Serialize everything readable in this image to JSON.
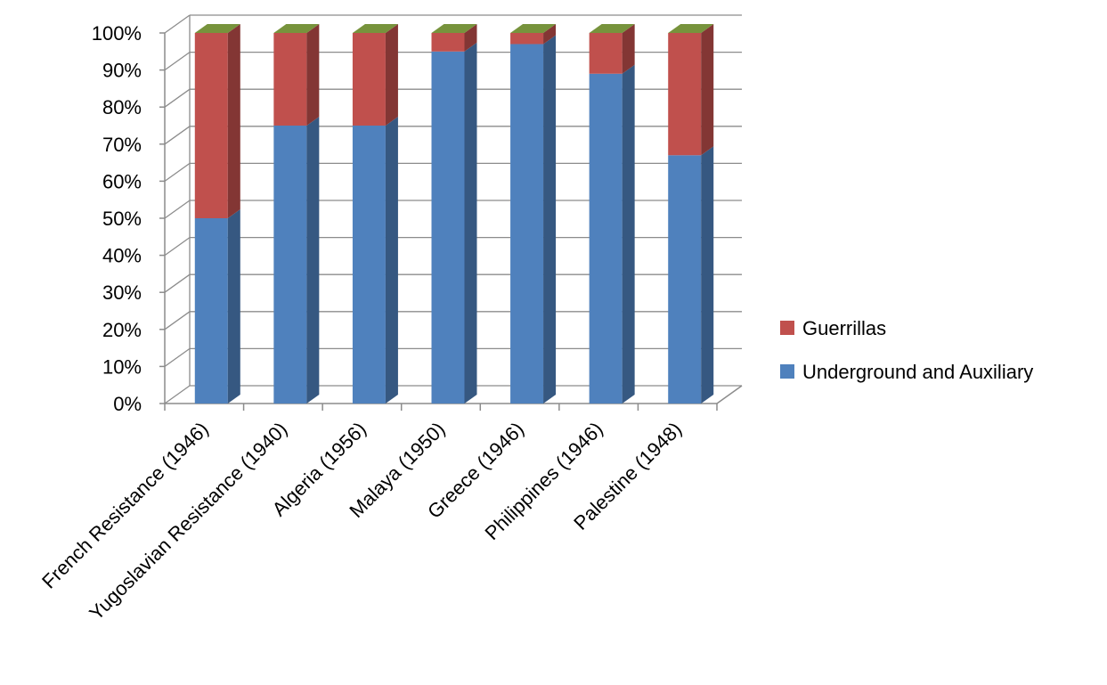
{
  "chart_data": {
    "type": "bar",
    "stacked": "percent",
    "style": "3d-column",
    "categories": [
      "French Resistance (1946)",
      "Yugoslavian Resistance (1940)",
      "Algeria (1956)",
      "Malaya (1950)",
      "Greece (1946)",
      "Philippines (1946)",
      "Palestine (1948)"
    ],
    "series": [
      {
        "name": "Underground and Auxiliary",
        "values": [
          50,
          75,
          75,
          95,
          97,
          89,
          67
        ],
        "color": "#4F81BD"
      },
      {
        "name": "Guerrillas",
        "values": [
          50,
          25,
          25,
          5,
          3,
          11,
          33
        ],
        "color": "#C0504D"
      }
    ],
    "ylim": [
      0,
      100
    ],
    "yticks": [
      "0%",
      "10%",
      "20%",
      "30%",
      "40%",
      "50%",
      "60%",
      "70%",
      "80%",
      "90%",
      "100%"
    ],
    "grid": true,
    "legend": "right",
    "legend_order": [
      "Guerrillas",
      "Underground and Auxiliary"
    ],
    "title": "",
    "xlabel": "",
    "ylabel": ""
  }
}
